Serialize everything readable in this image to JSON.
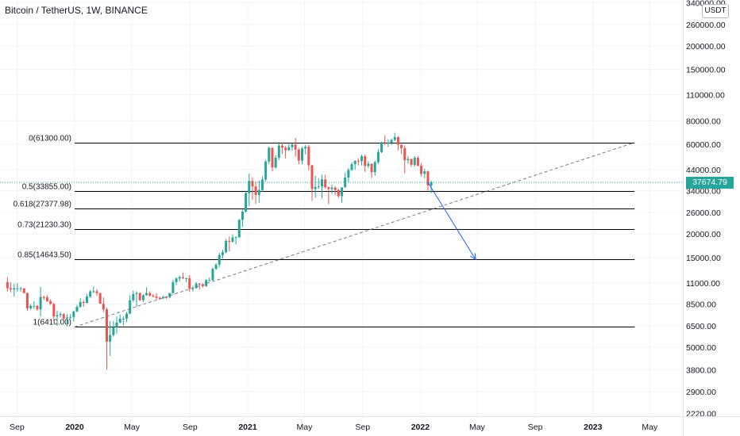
{
  "header": {
    "title": "Bitcoin / TetherUS, 1W, BINANCE",
    "unit": "USDT"
  },
  "colors": {
    "up": "#26a69a",
    "down": "#ef5350",
    "fib_line": "#000000",
    "trend": "#787b86",
    "projection": "#2962ff",
    "last_price": "#26a69a"
  },
  "last_price": {
    "label": "37674.79",
    "value": 37674.79
  },
  "chart_data": {
    "type": "candlestick",
    "title": "Bitcoin / TetherUS, 1W, BINANCE",
    "y_scale": "log",
    "ylim": [
      2000,
      360000
    ],
    "y_ticks": [
      {
        "value": 340000,
        "label": "340000.00"
      },
      {
        "value": 260000,
        "label": "260000.00"
      },
      {
        "value": 200000,
        "label": "200000.00"
      },
      {
        "value": 150000,
        "label": "150000.00"
      },
      {
        "value": 110000,
        "label": "110000.00"
      },
      {
        "value": 80000,
        "label": "80000.00"
      },
      {
        "value": 60000,
        "label": "60000.00"
      },
      {
        "value": 44000,
        "label": "44000.00"
      },
      {
        "value": 34000,
        "label": "34000.00"
      },
      {
        "value": 26000,
        "label": "26000.00"
      },
      {
        "value": 20000,
        "label": "20000.00"
      },
      {
        "value": 15000,
        "label": "15000.00"
      },
      {
        "value": 11000,
        "label": "11000.00"
      },
      {
        "value": 8500,
        "label": "8500.00"
      },
      {
        "value": 6500,
        "label": "6500.00"
      },
      {
        "value": 5000,
        "label": "5000.00"
      },
      {
        "value": 3800,
        "label": "3800.00"
      },
      {
        "value": 2900,
        "label": "2900.00"
      },
      {
        "value": 2220,
        "label": "2220.00"
      }
    ],
    "x_ticks": [
      {
        "date": "2019-09-01",
        "label": "Sep",
        "bold": false
      },
      {
        "date": "2020-01-01",
        "label": "2020",
        "bold": true
      },
      {
        "date": "2020-05-01",
        "label": "May",
        "bold": false
      },
      {
        "date": "2020-09-01",
        "label": "Sep",
        "bold": false
      },
      {
        "date": "2021-01-01",
        "label": "2021",
        "bold": true
      },
      {
        "date": "2021-05-01",
        "label": "May",
        "bold": false
      },
      {
        "date": "2021-09-01",
        "label": "Sep",
        "bold": false
      },
      {
        "date": "2022-01-01",
        "label": "2022",
        "bold": true
      },
      {
        "date": "2022-05-01",
        "label": "May",
        "bold": false
      },
      {
        "date": "2022-09-01",
        "label": "Sep",
        "bold": false
      },
      {
        "date": "2023-01-01",
        "label": "2023",
        "bold": true
      },
      {
        "date": "2023-05-01",
        "label": "May",
        "bold": false
      }
    ],
    "fib_levels": [
      {
        "label": "0(61300.00)",
        "price": 61300
      },
      {
        "label": "0.5(33855.00)",
        "price": 33855
      },
      {
        "label": "0.618(27377.98)",
        "price": 27377.98
      },
      {
        "label": "0.73(21230.30)",
        "price": 21230.3
      },
      {
        "label": "0.85(14643.50)",
        "price": 14643.5
      },
      {
        "label": "1(6410.00)",
        "price": 6410
      }
    ],
    "fib_range": {
      "start": "2020-01-01",
      "end": "2023-03-30"
    },
    "trend_line": [
      {
        "date": "2020-01-01",
        "price": 6410
      },
      {
        "date": "2023-03-30",
        "price": 61300
      }
    ],
    "projection": [
      {
        "date": "2022-01-17",
        "price": 37674.79
      },
      {
        "date": "2022-04-28",
        "price": 14643.5
      }
    ],
    "candles": [
      {
        "d": "2019-08-12",
        "o": 11100,
        "h": 11800,
        "l": 9900,
        "c": 10300
      },
      {
        "d": "2019-08-19",
        "o": 10300,
        "h": 11100,
        "l": 9800,
        "c": 10140
      },
      {
        "d": "2019-08-26",
        "o": 10140,
        "h": 10900,
        "l": 9300,
        "c": 10300
      },
      {
        "d": "2019-09-02",
        "o": 10300,
        "h": 10950,
        "l": 9900,
        "c": 10300
      },
      {
        "d": "2019-09-09",
        "o": 10300,
        "h": 10450,
        "l": 9900,
        "c": 10300
      },
      {
        "d": "2019-09-16",
        "o": 10300,
        "h": 10300,
        "l": 9700,
        "c": 9700
      },
      {
        "d": "2019-09-23",
        "o": 9700,
        "h": 9800,
        "l": 7800,
        "c": 8050
      },
      {
        "d": "2019-09-30",
        "o": 8050,
        "h": 8500,
        "l": 7900,
        "c": 8300
      },
      {
        "d": "2019-10-07",
        "o": 8300,
        "h": 8800,
        "l": 8000,
        "c": 8300
      },
      {
        "d": "2019-10-14",
        "o": 8300,
        "h": 8400,
        "l": 7800,
        "c": 7950
      },
      {
        "d": "2019-10-21",
        "o": 7950,
        "h": 10500,
        "l": 7300,
        "c": 9250
      },
      {
        "d": "2019-10-28",
        "o": 9250,
        "h": 9400,
        "l": 8900,
        "c": 9200
      },
      {
        "d": "2019-11-04",
        "o": 9200,
        "h": 9450,
        "l": 8700,
        "c": 8800
      },
      {
        "d": "2019-11-11",
        "o": 8800,
        "h": 9000,
        "l": 8400,
        "c": 8500
      },
      {
        "d": "2019-11-18",
        "o": 8500,
        "h": 8600,
        "l": 6800,
        "c": 7300
      },
      {
        "d": "2019-11-25",
        "o": 7300,
        "h": 7850,
        "l": 6500,
        "c": 7400
      },
      {
        "d": "2019-12-02",
        "o": 7400,
        "h": 7700,
        "l": 7200,
        "c": 7500
      },
      {
        "d": "2019-12-09",
        "o": 7500,
        "h": 7600,
        "l": 7000,
        "c": 7100
      },
      {
        "d": "2019-12-16",
        "o": 7100,
        "h": 7500,
        "l": 6430,
        "c": 7200
      },
      {
        "d": "2019-12-23",
        "o": 7200,
        "h": 7500,
        "l": 7050,
        "c": 7250
      },
      {
        "d": "2019-12-30",
        "o": 7250,
        "h": 7800,
        "l": 6850,
        "c": 7750
      },
      {
        "d": "2020-01-06",
        "o": 7750,
        "h": 8400,
        "l": 7700,
        "c": 8200
      },
      {
        "d": "2020-01-13",
        "o": 8200,
        "h": 9100,
        "l": 8100,
        "c": 8700
      },
      {
        "d": "2020-01-20",
        "o": 8700,
        "h": 8900,
        "l": 8200,
        "c": 8600
      },
      {
        "d": "2020-01-27",
        "o": 8600,
        "h": 9600,
        "l": 8550,
        "c": 9300
      },
      {
        "d": "2020-02-03",
        "o": 9300,
        "h": 10100,
        "l": 9150,
        "c": 9900
      },
      {
        "d": "2020-02-10",
        "o": 9900,
        "h": 10500,
        "l": 9700,
        "c": 9920
      },
      {
        "d": "2020-02-17",
        "o": 9920,
        "h": 10200,
        "l": 9400,
        "c": 9700
      },
      {
        "d": "2020-02-24",
        "o": 9700,
        "h": 9750,
        "l": 8500,
        "c": 8530
      },
      {
        "d": "2020-03-02",
        "o": 8530,
        "h": 9200,
        "l": 7700,
        "c": 7950
      },
      {
        "d": "2020-03-09",
        "o": 7950,
        "h": 8100,
        "l": 3800,
        "c": 5350
      },
      {
        "d": "2020-03-16",
        "o": 5350,
        "h": 6900,
        "l": 4500,
        "c": 5800
      },
      {
        "d": "2020-03-23",
        "o": 5800,
        "h": 6900,
        "l": 5700,
        "c": 6400
      },
      {
        "d": "2020-03-30",
        "o": 6400,
        "h": 7300,
        "l": 5900,
        "c": 6770
      },
      {
        "d": "2020-04-06",
        "o": 6770,
        "h": 7460,
        "l": 6700,
        "c": 7100
      },
      {
        "d": "2020-04-13",
        "o": 7100,
        "h": 7300,
        "l": 6500,
        "c": 7100
      },
      {
        "d": "2020-04-20",
        "o": 7100,
        "h": 7700,
        "l": 6800,
        "c": 7550
      },
      {
        "d": "2020-04-27",
        "o": 7550,
        "h": 9450,
        "l": 7500,
        "c": 8900
      },
      {
        "d": "2020-05-04",
        "o": 8900,
        "h": 10000,
        "l": 8700,
        "c": 9600
      },
      {
        "d": "2020-05-11",
        "o": 9600,
        "h": 9900,
        "l": 8200,
        "c": 9700
      },
      {
        "d": "2020-05-18",
        "o": 9700,
        "h": 9800,
        "l": 8800,
        "c": 8900
      },
      {
        "d": "2020-05-25",
        "o": 8900,
        "h": 9600,
        "l": 8700,
        "c": 9450
      },
      {
        "d": "2020-06-01",
        "o": 9450,
        "h": 10400,
        "l": 9400,
        "c": 9700
      },
      {
        "d": "2020-06-08",
        "o": 9700,
        "h": 9900,
        "l": 9300,
        "c": 9400
      },
      {
        "d": "2020-06-15",
        "o": 9400,
        "h": 9600,
        "l": 9200,
        "c": 9300
      },
      {
        "d": "2020-06-22",
        "o": 9300,
        "h": 9700,
        "l": 8950,
        "c": 9150
      },
      {
        "d": "2020-06-29",
        "o": 9150,
        "h": 9300,
        "l": 8950,
        "c": 9100
      },
      {
        "d": "2020-07-06",
        "o": 9100,
        "h": 9400,
        "l": 9000,
        "c": 9250
      },
      {
        "d": "2020-07-13",
        "o": 9250,
        "h": 9300,
        "l": 9050,
        "c": 9200
      },
      {
        "d": "2020-07-20",
        "o": 9200,
        "h": 9700,
        "l": 9150,
        "c": 9700
      },
      {
        "d": "2020-07-27",
        "o": 9700,
        "h": 11400,
        "l": 9600,
        "c": 11100
      },
      {
        "d": "2020-08-03",
        "o": 11100,
        "h": 11800,
        "l": 10700,
        "c": 11600
      },
      {
        "d": "2020-08-10",
        "o": 11600,
        "h": 12000,
        "l": 11200,
        "c": 11800
      },
      {
        "d": "2020-08-17",
        "o": 11800,
        "h": 12500,
        "l": 11500,
        "c": 11650
      },
      {
        "d": "2020-08-24",
        "o": 11650,
        "h": 11700,
        "l": 11100,
        "c": 11650
      },
      {
        "d": "2020-08-31",
        "o": 11650,
        "h": 12100,
        "l": 9850,
        "c": 10250
      },
      {
        "d": "2020-09-07",
        "o": 10250,
        "h": 10600,
        "l": 9900,
        "c": 10300
      },
      {
        "d": "2020-09-14",
        "o": 10300,
        "h": 11100,
        "l": 10250,
        "c": 10900
      },
      {
        "d": "2020-09-21",
        "o": 10900,
        "h": 10950,
        "l": 10150,
        "c": 10750
      },
      {
        "d": "2020-09-28",
        "o": 10750,
        "h": 10950,
        "l": 10400,
        "c": 10550
      },
      {
        "d": "2020-10-05",
        "o": 10550,
        "h": 11500,
        "l": 10500,
        "c": 11350
      },
      {
        "d": "2020-10-12",
        "o": 11350,
        "h": 11750,
        "l": 11200,
        "c": 11350
      },
      {
        "d": "2020-10-19",
        "o": 11350,
        "h": 13300,
        "l": 11300,
        "c": 13050
      },
      {
        "d": "2020-10-26",
        "o": 13050,
        "h": 14000,
        "l": 12900,
        "c": 13750
      },
      {
        "d": "2020-11-02",
        "o": 13750,
        "h": 15900,
        "l": 13300,
        "c": 15450
      },
      {
        "d": "2020-11-09",
        "o": 15450,
        "h": 16500,
        "l": 14800,
        "c": 16000
      },
      {
        "d": "2020-11-16",
        "o": 16000,
        "h": 18800,
        "l": 15800,
        "c": 18400
      },
      {
        "d": "2020-11-23",
        "o": 18400,
        "h": 19400,
        "l": 16200,
        "c": 18200
      },
      {
        "d": "2020-11-30",
        "o": 18200,
        "h": 19900,
        "l": 18000,
        "c": 19150
      },
      {
        "d": "2020-12-07",
        "o": 19150,
        "h": 19400,
        "l": 17600,
        "c": 19250
      },
      {
        "d": "2020-12-14",
        "o": 19250,
        "h": 24000,
        "l": 19000,
        "c": 23800
      },
      {
        "d": "2020-12-21",
        "o": 23800,
        "h": 26900,
        "l": 21800,
        "c": 26300
      },
      {
        "d": "2020-12-28",
        "o": 26300,
        "h": 34000,
        "l": 26000,
        "c": 33000
      },
      {
        "d": "2021-01-04",
        "o": 33000,
        "h": 41900,
        "l": 28100,
        "c": 38300
      },
      {
        "d": "2021-01-11",
        "o": 38300,
        "h": 40100,
        "l": 30400,
        "c": 35800
      },
      {
        "d": "2021-01-18",
        "o": 35800,
        "h": 37900,
        "l": 28900,
        "c": 32300
      },
      {
        "d": "2021-01-25",
        "o": 32300,
        "h": 38500,
        "l": 29300,
        "c": 34300
      },
      {
        "d": "2021-02-01",
        "o": 34300,
        "h": 40500,
        "l": 33500,
        "c": 39000
      },
      {
        "d": "2021-02-08",
        "o": 39000,
        "h": 49700,
        "l": 38000,
        "c": 48600
      },
      {
        "d": "2021-02-15",
        "o": 48600,
        "h": 58300,
        "l": 47000,
        "c": 57500
      },
      {
        "d": "2021-02-22",
        "o": 57500,
        "h": 57500,
        "l": 43000,
        "c": 45200
      },
      {
        "d": "2021-03-01",
        "o": 45200,
        "h": 52600,
        "l": 44500,
        "c": 50900
      },
      {
        "d": "2021-03-08",
        "o": 50900,
        "h": 61800,
        "l": 49500,
        "c": 59000
      },
      {
        "d": "2021-03-15",
        "o": 59000,
        "h": 61200,
        "l": 53300,
        "c": 57600
      },
      {
        "d": "2021-03-22",
        "o": 57600,
        "h": 58700,
        "l": 50400,
        "c": 55800
      },
      {
        "d": "2021-03-29",
        "o": 55800,
        "h": 60200,
        "l": 55500,
        "c": 57900
      },
      {
        "d": "2021-04-05",
        "o": 57900,
        "h": 60800,
        "l": 55500,
        "c": 59800
      },
      {
        "d": "2021-04-12",
        "o": 59800,
        "h": 64900,
        "l": 51500,
        "c": 56200
      },
      {
        "d": "2021-04-19",
        "o": 56200,
        "h": 57400,
        "l": 47000,
        "c": 49100
      },
      {
        "d": "2021-04-26",
        "o": 49100,
        "h": 58400,
        "l": 47000,
        "c": 57000
      },
      {
        "d": "2021-05-03",
        "o": 57000,
        "h": 59500,
        "l": 53000,
        "c": 58200
      },
      {
        "d": "2021-05-10",
        "o": 58200,
        "h": 59600,
        "l": 43800,
        "c": 46400
      },
      {
        "d": "2021-05-17",
        "o": 46400,
        "h": 46600,
        "l": 30000,
        "c": 34700
      },
      {
        "d": "2021-05-24",
        "o": 34700,
        "h": 40800,
        "l": 31200,
        "c": 35600
      },
      {
        "d": "2021-05-31",
        "o": 35600,
        "h": 39500,
        "l": 34800,
        "c": 35800
      },
      {
        "d": "2021-06-07",
        "o": 35800,
        "h": 41300,
        "l": 31000,
        "c": 39000
      },
      {
        "d": "2021-06-14",
        "o": 39000,
        "h": 41300,
        "l": 34800,
        "c": 35500
      },
      {
        "d": "2021-06-21",
        "o": 35500,
        "h": 35700,
        "l": 28800,
        "c": 34700
      },
      {
        "d": "2021-06-28",
        "o": 34700,
        "h": 36600,
        "l": 32700,
        "c": 35300
      },
      {
        "d": "2021-07-05",
        "o": 35300,
        "h": 35900,
        "l": 32100,
        "c": 34300
      },
      {
        "d": "2021-07-12",
        "o": 34300,
        "h": 34800,
        "l": 31100,
        "c": 31800
      },
      {
        "d": "2021-07-19",
        "o": 31800,
        "h": 35400,
        "l": 29300,
        "c": 35400
      },
      {
        "d": "2021-07-26",
        "o": 35400,
        "h": 42500,
        "l": 35300,
        "c": 39900
      },
      {
        "d": "2021-08-02",
        "o": 39900,
        "h": 44800,
        "l": 37500,
        "c": 43800
      },
      {
        "d": "2021-08-09",
        "o": 43800,
        "h": 48100,
        "l": 43300,
        "c": 47000
      },
      {
        "d": "2021-08-16",
        "o": 47000,
        "h": 49400,
        "l": 43900,
        "c": 48900
      },
      {
        "d": "2021-08-23",
        "o": 48900,
        "h": 50500,
        "l": 46400,
        "c": 48800
      },
      {
        "d": "2021-08-30",
        "o": 48800,
        "h": 52900,
        "l": 46300,
        "c": 51800
      },
      {
        "d": "2021-09-06",
        "o": 51800,
        "h": 52900,
        "l": 42800,
        "c": 46000
      },
      {
        "d": "2021-09-13",
        "o": 46000,
        "h": 48800,
        "l": 44800,
        "c": 47300
      },
      {
        "d": "2021-09-20",
        "o": 47300,
        "h": 47400,
        "l": 39600,
        "c": 42700
      },
      {
        "d": "2021-09-27",
        "o": 42700,
        "h": 49200,
        "l": 40800,
        "c": 48200
      },
      {
        "d": "2021-10-04",
        "o": 48200,
        "h": 56600,
        "l": 47100,
        "c": 54600
      },
      {
        "d": "2021-10-11",
        "o": 54600,
        "h": 62000,
        "l": 53900,
        "c": 61500
      },
      {
        "d": "2021-10-18",
        "o": 61500,
        "h": 67000,
        "l": 59500,
        "c": 60900
      },
      {
        "d": "2021-10-25",
        "o": 60900,
        "h": 63700,
        "l": 58000,
        "c": 61300
      },
      {
        "d": "2021-11-01",
        "o": 61300,
        "h": 64200,
        "l": 59400,
        "c": 63300
      },
      {
        "d": "2021-11-08",
        "o": 63300,
        "h": 69000,
        "l": 62300,
        "c": 65500
      },
      {
        "d": "2021-11-15",
        "o": 65500,
        "h": 66300,
        "l": 55600,
        "c": 59700
      },
      {
        "d": "2021-11-22",
        "o": 59700,
        "h": 59800,
        "l": 53300,
        "c": 57200
      },
      {
        "d": "2021-11-29",
        "o": 57200,
        "h": 59200,
        "l": 42000,
        "c": 49400
      },
      {
        "d": "2021-12-06",
        "o": 49400,
        "h": 51900,
        "l": 47300,
        "c": 50100
      },
      {
        "d": "2021-12-13",
        "o": 50100,
        "h": 50300,
        "l": 45500,
        "c": 46700
      },
      {
        "d": "2021-12-20",
        "o": 46700,
        "h": 51900,
        "l": 45600,
        "c": 50800
      },
      {
        "d": "2021-12-27",
        "o": 50800,
        "h": 52100,
        "l": 45700,
        "c": 46200
      },
      {
        "d": "2022-01-03",
        "o": 46200,
        "h": 47600,
        "l": 40500,
        "c": 41800
      },
      {
        "d": "2022-01-10",
        "o": 41800,
        "h": 44500,
        "l": 39600,
        "c": 43100
      },
      {
        "d": "2022-01-17",
        "o": 43100,
        "h": 43500,
        "l": 34000,
        "c": 36300
      },
      {
        "d": "2022-01-24",
        "o": 36300,
        "h": 38400,
        "l": 33000,
        "c": 37674.79
      }
    ]
  }
}
